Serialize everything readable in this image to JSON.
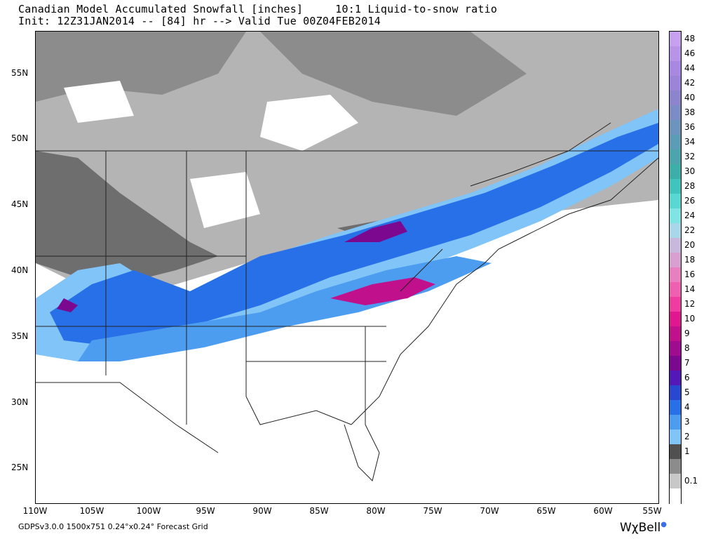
{
  "title": {
    "line1": "Canadian Model Accumulated Snowfall [inches]     10:1 Liquid-to-snow ratio",
    "line2": "Init: 12Z31JAN2014 -- [84] hr --> Valid Tue 00Z04FEB2014"
  },
  "map": {
    "lat_labels": [
      "55N",
      "50N",
      "45N",
      "40N",
      "35N",
      "30N",
      "25N"
    ],
    "lon_labels": [
      "110W",
      "105W",
      "100W",
      "95W",
      "90W",
      "85W",
      "80W",
      "75W",
      "70W",
      "65W",
      "60W",
      "55W"
    ]
  },
  "legend": {
    "labels": [
      "48",
      "46",
      "44",
      "42",
      "40",
      "38",
      "36",
      "34",
      "32",
      "30",
      "28",
      "26",
      "24",
      "22",
      "20",
      "18",
      "16",
      "14",
      "12",
      "10",
      "9",
      "8",
      "7",
      "6",
      "5",
      "4",
      "3",
      "2",
      "1",
      "0.1"
    ],
    "colors": [
      "#c8a0f0",
      "#b894e8",
      "#a888e0",
      "#9c84d8",
      "#8c84cc",
      "#7c8cc4",
      "#6c94bc",
      "#5c9cb4",
      "#4ca4ac",
      "#3cb0a8",
      "#40c4bc",
      "#58d8d0",
      "#80e4e4",
      "#a8d8e8",
      "#c8b8dc",
      "#d8a0d0",
      "#e880c0",
      "#f060b0",
      "#f03ca0",
      "#e01890",
      "#c0108c",
      "#a00c90",
      "#7c0890",
      "#5418b8",
      "#2848d0",
      "#2870e8",
      "#4c9cf0",
      "#80c4f8",
      "#505050",
      "#8c8c8c"
    ],
    "bottom_colors": [
      "#c8c8c8",
      "#ffffff"
    ]
  },
  "footer": {
    "text": "GDPSv3.0.0  1500x751  0.24°x0.24° Forecast Grid",
    "brand": "WχBell",
    "brand_icon": "dot-icon"
  }
}
